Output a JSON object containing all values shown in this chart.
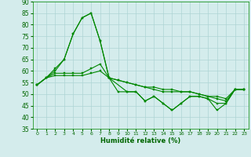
{
  "xlabel": "Humidité relative (%)",
  "xlim": [
    -0.5,
    23.5
  ],
  "ylim": [
    35,
    90
  ],
  "yticks": [
    35,
    40,
    45,
    50,
    55,
    60,
    65,
    70,
    75,
    80,
    85,
    90
  ],
  "xticks": [
    0,
    1,
    2,
    3,
    4,
    5,
    6,
    7,
    8,
    9,
    10,
    11,
    12,
    13,
    14,
    15,
    16,
    17,
    18,
    19,
    20,
    21,
    22,
    23
  ],
  "background_color": "#d4ecec",
  "grid_color": "#aed4d4",
  "line_color": "#008800",
  "line1_x": [
    0,
    1,
    2,
    3,
    4,
    5,
    6,
    7,
    8,
    9,
    10,
    11,
    12,
    13,
    14,
    15,
    16,
    17,
    18,
    19,
    20,
    21,
    22,
    23
  ],
  "line1_y": [
    54,
    57,
    61,
    65,
    76,
    83,
    85,
    73,
    57,
    51,
    51,
    51,
    47,
    49,
    46,
    43,
    46,
    49,
    49,
    48,
    46,
    46,
    52,
    52
  ],
  "line2_x": [
    0,
    2,
    3,
    4,
    5,
    6,
    7,
    8,
    10,
    11,
    12,
    13,
    14,
    15,
    16,
    17,
    18,
    19,
    20,
    21,
    22,
    23
  ],
  "line2_y": [
    54,
    60,
    65,
    76,
    83,
    85,
    73,
    57,
    51,
    51,
    47,
    49,
    46,
    43,
    46,
    49,
    49,
    48,
    43,
    46,
    52,
    52
  ],
  "line3_x": [
    0,
    1,
    2,
    3,
    4,
    5,
    6,
    7,
    8,
    9,
    10,
    11,
    12,
    13,
    14,
    15,
    16,
    17,
    18,
    19,
    20,
    21,
    22,
    23
  ],
  "line3_y": [
    54,
    57,
    59,
    59,
    59,
    59,
    61,
    63,
    57,
    56,
    55,
    54,
    53,
    53,
    52,
    52,
    51,
    51,
    50,
    49,
    49,
    48,
    52,
    52
  ],
  "line4_x": [
    0,
    1,
    2,
    3,
    4,
    5,
    6,
    7,
    8,
    9,
    10,
    11,
    12,
    13,
    14,
    15,
    16,
    17,
    18,
    19,
    20,
    21,
    22,
    23
  ],
  "line4_y": [
    54,
    57,
    58,
    58,
    58,
    58,
    59,
    60,
    57,
    56,
    55,
    54,
    53,
    52,
    51,
    51,
    51,
    51,
    50,
    49,
    48,
    47,
    52,
    52
  ]
}
